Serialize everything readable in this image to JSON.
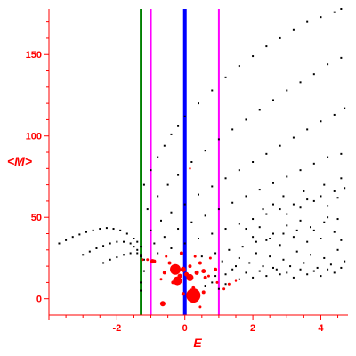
{
  "chart_data": {
    "type": "scatter",
    "xlabel": "E",
    "ylabel": "<M>",
    "xlim": [
      -4.0,
      4.8
    ],
    "ylim": [
      -10,
      178
    ],
    "x_ticks": [
      -2,
      0,
      2,
      4
    ],
    "y_ticks": [
      0,
      50,
      100,
      150
    ],
    "grid": false,
    "axis_color": "#ff0000",
    "vertical_lines": [
      {
        "x": -1.3,
        "color": "#008000",
        "width": 2
      },
      {
        "x": -1.0,
        "color": "#ff00ff",
        "width": 2
      },
      {
        "x": 0.0,
        "color": "#0000ff",
        "width": 4
      },
      {
        "x": 1.0,
        "color": "#ff00ff",
        "width": 2
      }
    ],
    "series": [
      {
        "color": "#000000",
        "marker": "dot",
        "points": [
          [
            -3.7,
            34
          ],
          [
            -3.5,
            36
          ],
          [
            -3.3,
            38
          ],
          [
            -3.1,
            39.5
          ],
          [
            -2.9,
            41
          ],
          [
            -2.7,
            42
          ],
          [
            -2.5,
            43
          ],
          [
            -2.3,
            43.5
          ],
          [
            -2.1,
            43
          ],
          [
            -1.9,
            42
          ],
          [
            -1.7,
            40
          ],
          [
            -1.5,
            37
          ],
          [
            -1.4,
            35
          ],
          [
            -1.3,
            32
          ],
          [
            -3.0,
            27
          ],
          [
            -2.8,
            29
          ],
          [
            -2.6,
            31
          ],
          [
            -2.4,
            32.5
          ],
          [
            -2.2,
            34
          ],
          [
            -2.0,
            35
          ],
          [
            -1.8,
            35
          ],
          [
            -1.6,
            34
          ],
          [
            -1.5,
            32
          ],
          [
            -1.4,
            30
          ],
          [
            -1.3,
            27
          ],
          [
            -2.4,
            22
          ],
          [
            -2.2,
            24
          ],
          [
            -2.0,
            25.5
          ],
          [
            -1.8,
            27
          ],
          [
            -1.6,
            28
          ],
          [
            -1.4,
            28
          ],
          [
            -1.3,
            26
          ],
          [
            -1.2,
            24
          ],
          [
            -1.2,
            70
          ],
          [
            -1.0,
            79
          ],
          [
            -0.8,
            87
          ],
          [
            -0.6,
            94
          ],
          [
            -0.4,
            101
          ],
          [
            -0.2,
            106
          ],
          [
            0.0,
            112
          ],
          [
            0.4,
            120
          ],
          [
            0.8,
            128
          ],
          [
            1.2,
            136
          ],
          [
            1.6,
            143
          ],
          [
            2.0,
            149
          ],
          [
            2.4,
            155
          ],
          [
            2.8,
            160
          ],
          [
            3.2,
            165
          ],
          [
            3.6,
            170
          ],
          [
            4.0,
            173
          ],
          [
            4.4,
            176
          ],
          [
            4.6,
            178
          ],
          [
            -1.1,
            55
          ],
          [
            -0.8,
            63
          ],
          [
            -0.5,
            70
          ],
          [
            -0.2,
            76
          ],
          [
            0.2,
            84
          ],
          [
            0.6,
            91
          ],
          [
            1.0,
            98
          ],
          [
            1.4,
            104
          ],
          [
            1.8,
            110
          ],
          [
            2.2,
            116
          ],
          [
            2.6,
            122
          ],
          [
            3.0,
            128
          ],
          [
            3.4,
            133
          ],
          [
            3.8,
            138
          ],
          [
            4.2,
            144
          ],
          [
            4.6,
            148
          ],
          [
            -1.0,
            42
          ],
          [
            -0.7,
            48
          ],
          [
            -0.4,
            53
          ],
          [
            0.0,
            58
          ],
          [
            0.4,
            64
          ],
          [
            0.8,
            69
          ],
          [
            1.2,
            74
          ],
          [
            1.6,
            79
          ],
          [
            2.0,
            84
          ],
          [
            2.4,
            89
          ],
          [
            2.8,
            94
          ],
          [
            3.2,
            99
          ],
          [
            3.6,
            104
          ],
          [
            4.0,
            109
          ],
          [
            4.4,
            113
          ],
          [
            4.7,
            117
          ],
          [
            -0.9,
            34
          ],
          [
            -0.6,
            38
          ],
          [
            -0.2,
            43
          ],
          [
            0.2,
            47
          ],
          [
            0.6,
            51
          ],
          [
            1.0,
            55
          ],
          [
            1.4,
            59
          ],
          [
            1.8,
            63
          ],
          [
            2.2,
            67
          ],
          [
            2.6,
            71
          ],
          [
            3.0,
            75
          ],
          [
            3.4,
            79
          ],
          [
            3.8,
            83
          ],
          [
            4.2,
            87
          ],
          [
            4.6,
            89
          ],
          [
            -0.8,
            28
          ],
          [
            -0.4,
            31
          ],
          [
            0.0,
            34
          ],
          [
            0.4,
            37
          ],
          [
            0.8,
            40
          ],
          [
            1.2,
            43
          ],
          [
            1.6,
            46
          ],
          [
            2.0,
            49
          ],
          [
            2.4,
            52
          ],
          [
            2.8,
            55
          ],
          [
            3.2,
            58
          ],
          [
            3.6,
            61
          ],
          [
            4.0,
            63
          ],
          [
            4.4,
            66
          ],
          [
            4.7,
            68
          ],
          [
            0.5,
            26
          ],
          [
            0.9,
            28
          ],
          [
            1.3,
            30
          ],
          [
            1.7,
            32
          ],
          [
            2.1,
            35
          ],
          [
            2.5,
            37
          ],
          [
            2.9,
            40
          ],
          [
            3.3,
            42
          ],
          [
            3.7,
            44
          ],
          [
            4.1,
            47
          ],
          [
            4.5,
            49
          ],
          [
            1.8,
            43
          ],
          [
            2.0,
            38
          ],
          [
            2.2,
            44
          ],
          [
            2.4,
            36
          ],
          [
            2.6,
            40
          ],
          [
            2.8,
            33
          ],
          [
            3.0,
            45
          ],
          [
            3.2,
            38
          ],
          [
            3.4,
            48
          ],
          [
            3.6,
            35
          ],
          [
            3.8,
            42
          ],
          [
            4.0,
            37
          ],
          [
            4.2,
            50
          ],
          [
            4.4,
            41
          ],
          [
            4.6,
            36
          ],
          [
            1.6,
            25
          ],
          [
            1.9,
            22
          ],
          [
            2.1,
            28
          ],
          [
            2.3,
            20
          ],
          [
            2.5,
            26
          ],
          [
            2.7,
            18
          ],
          [
            2.9,
            24
          ],
          [
            3.1,
            20
          ],
          [
            3.3,
            29
          ],
          [
            3.5,
            22
          ],
          [
            3.7,
            27
          ],
          [
            3.9,
            19
          ],
          [
            4.1,
            25
          ],
          [
            4.3,
            21
          ],
          [
            4.5,
            30
          ],
          [
            4.7,
            23
          ],
          [
            1.2,
            15
          ],
          [
            1.4,
            18
          ],
          [
            1.6,
            12
          ],
          [
            1.8,
            16
          ],
          [
            2.0,
            13
          ],
          [
            2.2,
            17
          ],
          [
            2.4,
            14
          ],
          [
            2.6,
            19
          ],
          [
            2.8,
            15
          ],
          [
            3.0,
            16
          ],
          [
            3.2,
            13
          ],
          [
            3.4,
            18
          ],
          [
            3.6,
            15
          ],
          [
            3.8,
            17
          ],
          [
            4.0,
            14
          ],
          [
            4.2,
            18
          ],
          [
            4.4,
            16
          ],
          [
            4.6,
            19
          ],
          [
            2.3,
            55
          ],
          [
            2.6,
            58
          ],
          [
            3.0,
            52
          ],
          [
            3.4,
            56
          ],
          [
            3.8,
            60
          ],
          [
            4.2,
            57
          ],
          [
            4.5,
            62
          ],
          [
            2.9,
            63
          ],
          [
            3.5,
            66
          ],
          [
            4.1,
            70
          ],
          [
            4.6,
            74
          ],
          [
            0.6,
            8
          ],
          [
            0.8,
            10
          ],
          [
            1.0,
            6
          ],
          [
            1.2,
            9
          ],
          [
            0.9,
            14
          ],
          [
            1.5,
            20
          ],
          [
            1.1,
            23
          ],
          [
            -1.3,
            5
          ],
          [
            -1.3,
            10
          ],
          [
            -1.2,
            17
          ]
        ]
      },
      {
        "color": "#ff0000",
        "marker": "filled-circle",
        "points": [
          [
            0.05,
            15,
            2.5
          ],
          [
            -0.25,
            18,
            2.5
          ],
          [
            -0.15,
            14,
            2.5
          ],
          [
            0.35,
            16,
            2.5
          ],
          [
            0.6,
            13,
            2
          ],
          [
            -0.45,
            22,
            2
          ],
          [
            0.15,
            20,
            2
          ],
          [
            -0.6,
            16,
            2
          ],
          [
            0.9,
            18,
            2
          ],
          [
            0.45,
            22,
            2
          ],
          [
            -0.9,
            23,
            2
          ],
          [
            -1.1,
            24,
            1.5
          ],
          [
            -0.35,
            10,
            2
          ],
          [
            0.25,
            7,
            2
          ],
          [
            -0.1,
            28,
            2
          ],
          [
            0.75,
            25,
            1.5
          ],
          [
            1.15,
            6,
            1.5
          ],
          [
            0.55,
            4,
            2
          ],
          [
            -0.05,
            3,
            2
          ],
          [
            0.45,
            -5,
            1.5
          ],
          [
            -1.25,
            24,
            1.5
          ],
          [
            -0.05,
            18,
            3
          ],
          [
            0.3,
            26,
            1.5
          ],
          [
            0.7,
            14,
            1.5
          ],
          [
            1.3,
            9,
            1.5
          ],
          [
            1.5,
            11,
            1.2
          ],
          [
            0.15,
            80,
            1.2
          ],
          [
            -0.7,
            12,
            1.5
          ],
          [
            -0.55,
            26,
            1.5
          ],
          [
            0.95,
            10,
            1.5
          ],
          [
            -0.22,
            11,
            5
          ],
          [
            -0.28,
            18,
            6
          ],
          [
            0.15,
            13,
            4
          ],
          [
            -0.65,
            -3,
            3
          ],
          [
            0.25,
            2,
            8
          ],
          [
            0.55,
            17,
            2.5
          ],
          [
            -0.95,
            23,
            2.5
          ]
        ]
      }
    ]
  }
}
